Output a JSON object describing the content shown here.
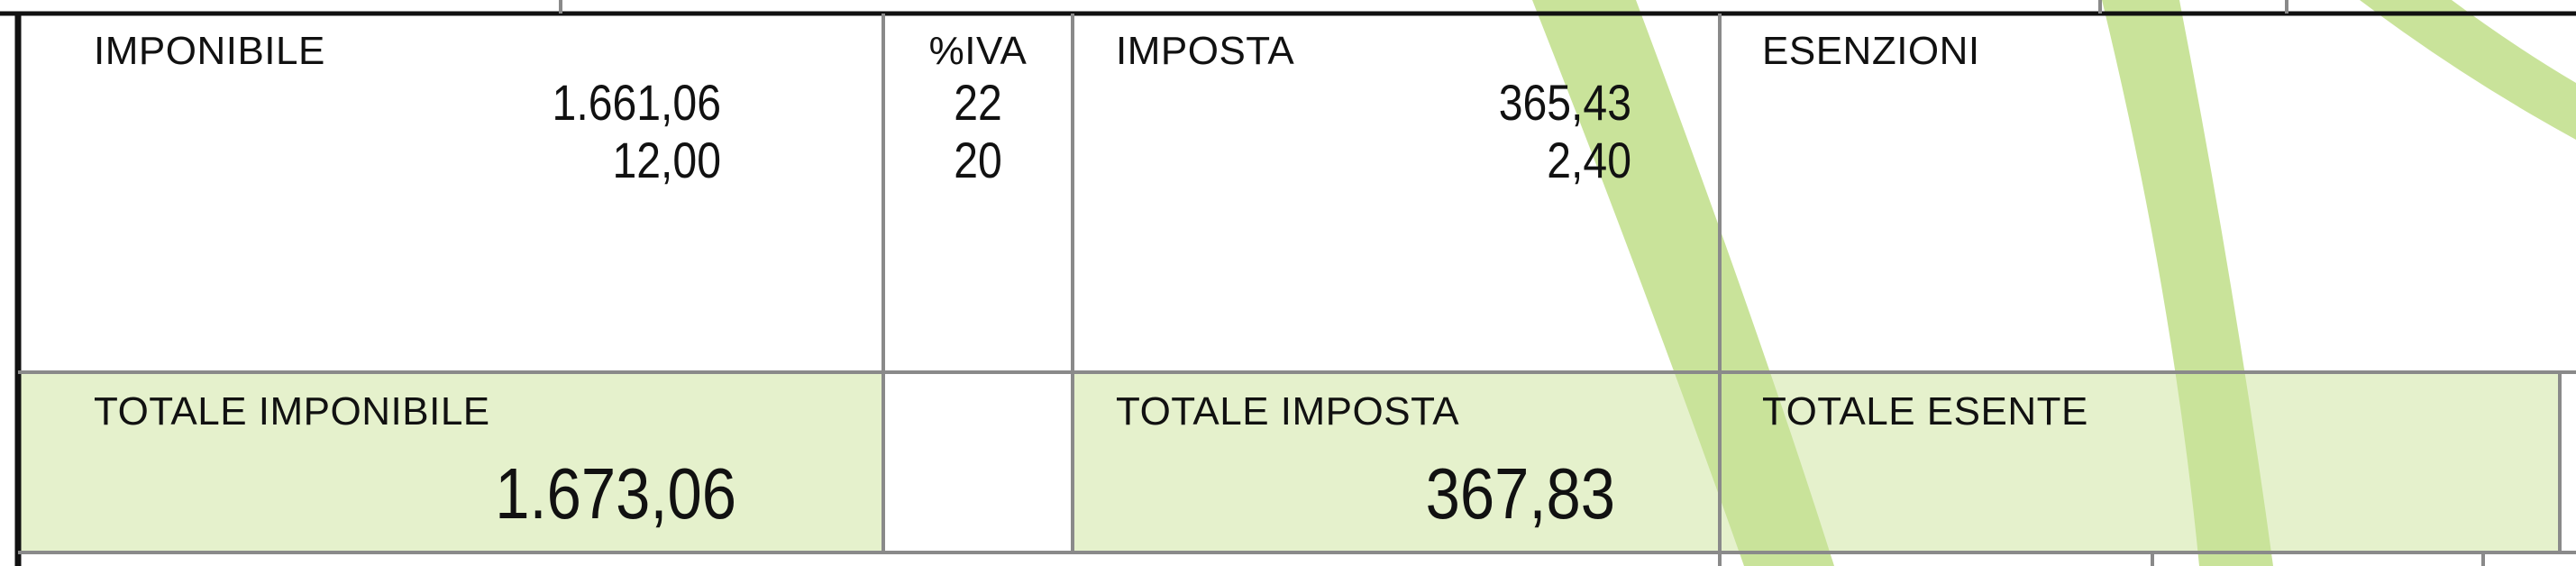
{
  "colors": {
    "border_dark": "#111111",
    "border_grey": "#8a8a8a",
    "total_fill": "#e5f1cc",
    "watermark_green": "#c9e39a"
  },
  "vat_table": {
    "headers": {
      "imponibile": "IMPONIBILE",
      "iva_percent": "%IVA",
      "imposta": "IMPOSTA",
      "esenzioni": "ESENZIONI"
    },
    "rows": [
      {
        "imponibile": "1.661,06",
        "iva": "22",
        "imposta": "365,43"
      },
      {
        "imponibile": "12,00",
        "iva": "20",
        "imposta": "2,40"
      }
    ]
  },
  "totals": {
    "imponibile_label": "TOTALE IMPONIBILE",
    "imponibile_value": "1.673,06",
    "imposta_label": "TOTALE IMPOSTA",
    "imposta_value": "367,83",
    "esente_label": "TOTALE ESENTE",
    "esente_value": ""
  },
  "watermark": {
    "icon": "green-swoosh-watermark-icon"
  }
}
